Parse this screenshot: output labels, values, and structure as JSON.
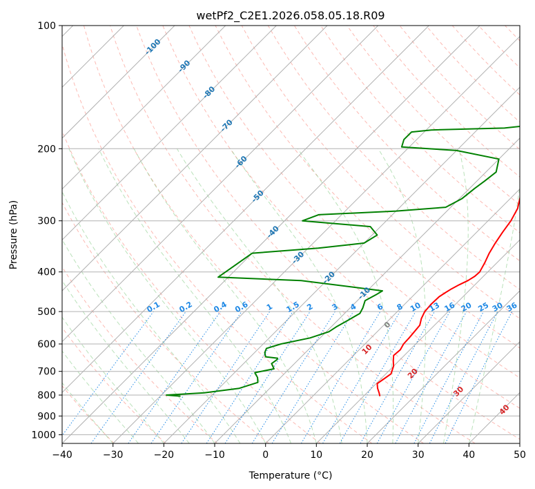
{
  "chart_data": {
    "type": "line",
    "title": "wetPf2_C2E1.2026.058.05.18.R09",
    "xlabel": "Temperature (°C)",
    "ylabel": "Pressure (hPa)",
    "xlim": [
      -40,
      50
    ],
    "ylim": [
      1050,
      100
    ],
    "x_ticks": [
      -40,
      -30,
      -20,
      -10,
      0,
      10,
      20,
      30,
      40,
      50
    ],
    "x_tick_labels": [
      "−40",
      "−30",
      "−20",
      "−10",
      "0",
      "10",
      "20",
      "30",
      "40",
      "50"
    ],
    "y_ticks": [
      100,
      200,
      300,
      400,
      500,
      600,
      700,
      800,
      900,
      1000
    ],
    "y_tick_labels": [
      "100",
      "200",
      "300",
      "400",
      "500",
      "600",
      "700",
      "800",
      "900",
      "1000"
    ],
    "colors": {
      "temperature": "#ff0000",
      "dewpoint": "#008000",
      "isotherm": "#b0b0b0",
      "dry_adiabat": "#fa8072",
      "moist_adiabat": "#7fc97f",
      "mixing_ratio": "#1e88e5",
      "isotherm_label": "#1f77b4",
      "dry_label": "#d62728",
      "zero_label": "#808080"
    },
    "series": [
      {
        "name": "Temperature",
        "color": "#ff0000",
        "points": [
          [
            13.2,
            805
          ],
          [
            12.4,
            790
          ],
          [
            11.2,
            770
          ],
          [
            10.2,
            750
          ],
          [
            10.6,
            730
          ],
          [
            11.0,
            710
          ],
          [
            10.0,
            680
          ],
          [
            8.9,
            660
          ],
          [
            7.9,
            640
          ],
          [
            8.1,
            620
          ],
          [
            7.6,
            600
          ],
          [
            7.5,
            580
          ],
          [
            7.3,
            560
          ],
          [
            7.1,
            540
          ],
          [
            6.1,
            520
          ],
          [
            5.4,
            500
          ],
          [
            5.2,
            480
          ],
          [
            5.3,
            460
          ],
          [
            5.7,
            450
          ],
          [
            6.2,
            440
          ],
          [
            6.9,
            430
          ],
          [
            7.8,
            420
          ],
          [
            8.3,
            410
          ],
          [
            8.4,
            400
          ],
          [
            7.6,
            380
          ],
          [
            6.6,
            360
          ],
          [
            5.8,
            340
          ],
          [
            5.1,
            320
          ],
          [
            4.5,
            300
          ],
          [
            3.4,
            280
          ],
          [
            1.4,
            260
          ],
          [
            -0.9,
            240
          ],
          [
            -2.3,
            225
          ],
          [
            -1.3,
            214
          ],
          [
            2.0,
            206
          ],
          [
            6.9,
            200
          ],
          [
            8.2,
            196
          ],
          [
            9.0,
            190
          ],
          [
            8.5,
            180
          ],
          [
            8.6,
            172
          ],
          [
            10.0,
            160
          ],
          [
            10.6,
            150
          ],
          [
            11.1,
            143
          ],
          [
            12.8,
            137
          ],
          [
            14.0,
            130
          ],
          [
            14.6,
            124
          ],
          [
            15.3,
            118
          ],
          [
            16.3,
            112
          ],
          [
            16.1,
            106
          ],
          [
            15.9,
            100
          ]
        ]
      },
      {
        "name": "Dewpoint",
        "color": "#008000",
        "points": [
          [
            -26.0,
            805
          ],
          [
            -29.0,
            800
          ],
          [
            -22.0,
            790
          ],
          [
            -16.0,
            770
          ],
          [
            -13.5,
            745
          ],
          [
            -14.5,
            725
          ],
          [
            -16.0,
            705
          ],
          [
            -13.0,
            690
          ],
          [
            -14.5,
            670
          ],
          [
            -14.2,
            655
          ],
          [
            -14.4,
            650
          ],
          [
            -17.0,
            645
          ],
          [
            -18.0,
            630
          ],
          [
            -18.5,
            615
          ],
          [
            -16.5,
            600
          ],
          [
            -12.0,
            580
          ],
          [
            -9.5,
            560
          ],
          [
            -9.0,
            545
          ],
          [
            -8.0,
            525
          ],
          [
            -7.0,
            505
          ],
          [
            -7.5,
            490
          ],
          [
            -8.5,
            470
          ],
          [
            -7.5,
            455
          ],
          [
            -7.0,
            445
          ],
          [
            -25.0,
            420
          ],
          [
            -42.0,
            412
          ],
          [
            -40.0,
            360
          ],
          [
            -28.0,
            350
          ],
          [
            -20.0,
            340
          ],
          [
            -19.0,
            325
          ],
          [
            -22.0,
            310
          ],
          [
            -36.5,
            300
          ],
          [
            -34.5,
            290
          ],
          [
            -20.0,
            284
          ],
          [
            -11.0,
            278
          ],
          [
            -9.5,
            265
          ],
          [
            -9.0,
            250
          ],
          [
            -8.5,
            240
          ],
          [
            -8.0,
            228
          ],
          [
            -10.0,
            212
          ],
          [
            -20.0,
            202
          ],
          [
            -31.5,
            198
          ],
          [
            -32.5,
            190
          ],
          [
            -32.5,
            182
          ],
          [
            -29.0,
            180
          ],
          [
            -15.0,
            178
          ],
          [
            -10.0,
            175
          ],
          [
            -8.5,
            162
          ],
          [
            -8.0,
            150
          ],
          [
            -8.8,
            140
          ],
          [
            -10.0,
            130
          ],
          [
            -9.0,
            122
          ],
          [
            -6.0,
            115
          ],
          [
            -3.0,
            110
          ],
          [
            -0.5,
            104
          ],
          [
            1.0,
            100
          ]
        ]
      }
    ],
    "isotherm_labels": [
      "-100",
      "-90",
      "-80",
      "-70",
      "-60",
      "-50",
      "-40",
      "-30",
      "-20",
      "-10"
    ],
    "mixing_ratio_labels": [
      "0.1",
      "0.2",
      "0.4",
      "0.6",
      "1",
      "1.5",
      "2",
      "3",
      "4",
      "6",
      "8",
      "10",
      "13",
      "16",
      "20",
      "25",
      "30",
      "36"
    ],
    "dry_adiabat_labels": [
      "10",
      "20",
      "30",
      "40"
    ],
    "zero_label": "0"
  }
}
